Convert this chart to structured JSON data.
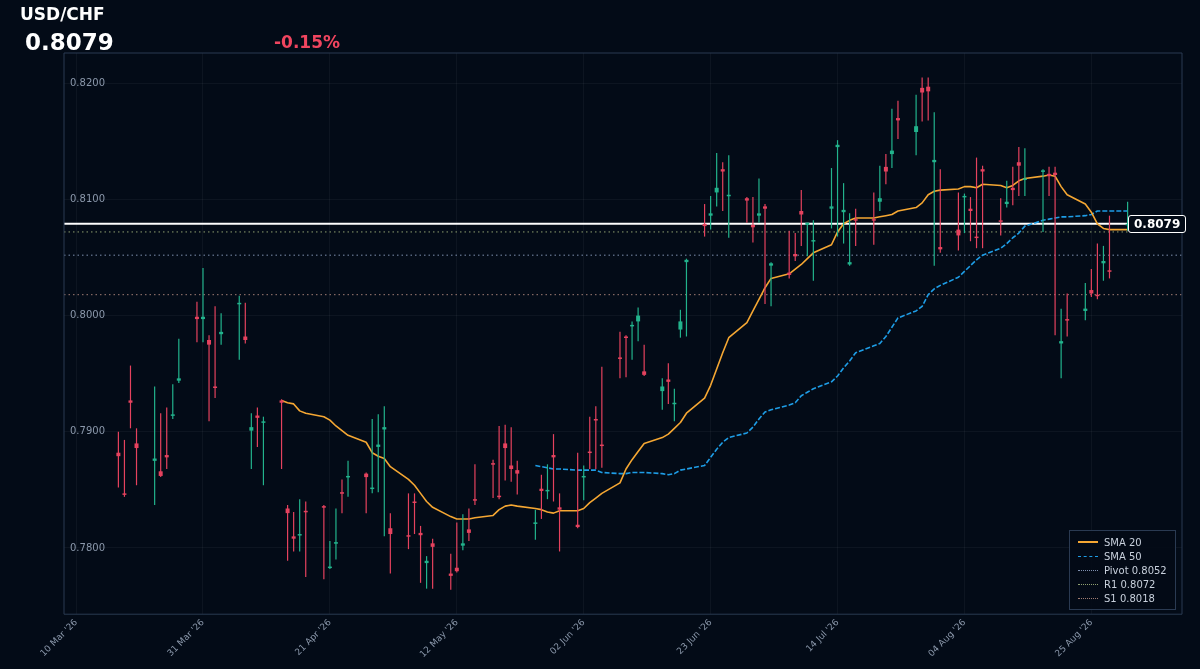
{
  "chart_data": {
    "type": "candlestick",
    "title": "USD/CHF",
    "subtitle": "0.8079",
    "annotations": [
      "-0.15%"
    ],
    "x": [
      "2026-03-17",
      "2026-03-18",
      "2026-03-19",
      "2026-03-20",
      "2026-03-23",
      "2026-03-24",
      "2026-03-25",
      "2026-03-26",
      "2026-03-27",
      "2026-03-30",
      "2026-03-31",
      "2026-04-01",
      "2026-04-02",
      "2026-04-03",
      "2026-04-06",
      "2026-04-07",
      "2026-04-08",
      "2026-04-09",
      "2026-04-10",
      "2026-04-13",
      "2026-04-14",
      "2026-04-15",
      "2026-04-16",
      "2026-04-17",
      "2026-04-20",
      "2026-04-21",
      "2026-04-22",
      "2026-04-23",
      "2026-04-24",
      "2026-04-27",
      "2026-04-28",
      "2026-04-29",
      "2026-04-30",
      "2026-05-01",
      "2026-05-04",
      "2026-05-05",
      "2026-05-06",
      "2026-05-07",
      "2026-05-08",
      "2026-05-11",
      "2026-05-12",
      "2026-05-13",
      "2026-05-14",
      "2026-05-15",
      "2026-05-18",
      "2026-05-19",
      "2026-05-20",
      "2026-05-21",
      "2026-05-22",
      "2026-05-25",
      "2026-05-26",
      "2026-05-27",
      "2026-05-28",
      "2026-05-29",
      "2026-06-01",
      "2026-06-02",
      "2026-06-03",
      "2026-06-04",
      "2026-06-05",
      "2026-06-08",
      "2026-06-09",
      "2026-06-10",
      "2026-06-11",
      "2026-06-12",
      "2026-06-15",
      "2026-06-16",
      "2026-06-17",
      "2026-06-18",
      "2026-06-19",
      "2026-06-22",
      "2026-06-23",
      "2026-06-24",
      "2026-06-25",
      "2026-06-26",
      "2026-06-29",
      "2026-06-30",
      "2026-07-01",
      "2026-07-02",
      "2026-07-03",
      "2026-07-06",
      "2026-07-07",
      "2026-07-08",
      "2026-07-09",
      "2026-07-10",
      "2026-07-13",
      "2026-07-14",
      "2026-07-15",
      "2026-07-16",
      "2026-07-17",
      "2026-07-20",
      "2026-07-21",
      "2026-07-22",
      "2026-07-23",
      "2026-07-24",
      "2026-07-27",
      "2026-07-28",
      "2026-07-29",
      "2026-07-30",
      "2026-07-31",
      "2026-08-03",
      "2026-08-04",
      "2026-08-05",
      "2026-08-06",
      "2026-08-07",
      "2026-08-10",
      "2026-08-11",
      "2026-08-12",
      "2026-08-13",
      "2026-08-14",
      "2026-08-17",
      "2026-08-18",
      "2026-08-19",
      "2026-08-20",
      "2026-08-21",
      "2026-08-24",
      "2026-08-25",
      "2026-08-26",
      "2026-08-27",
      "2026-08-28",
      "2026-08-31"
    ],
    "ohlc": [
      [
        0.7882,
        0.79,
        0.7852,
        0.7879
      ],
      [
        0.7847,
        0.7893,
        0.7844,
        0.7846
      ],
      [
        0.7927,
        0.7957,
        0.7903,
        0.7925
      ],
      [
        0.789,
        0.7903,
        0.7854,
        0.7886
      ],
      [
        0.7875,
        0.7939,
        0.7837,
        0.7877
      ],
      [
        0.7866,
        0.7916,
        0.7861,
        0.7862
      ],
      [
        0.788,
        0.7921,
        0.7868,
        0.7878
      ],
      [
        0.7914,
        0.7941,
        0.7911,
        0.7915
      ],
      [
        0.7944,
        0.798,
        0.7942,
        0.7946
      ],
      [
        0.7999,
        0.8012,
        0.7977,
        0.7997
      ],
      [
        0.7997,
        0.8041,
        0.7977,
        0.7999
      ],
      [
        0.7979,
        0.7983,
        0.7909,
        0.7975
      ],
      [
        0.7939,
        0.8008,
        0.7929,
        0.7938
      ],
      [
        0.7984,
        0.8002,
        0.7975,
        0.7986
      ],
      [
        0.801,
        0.8017,
        0.7962,
        0.8011
      ],
      [
        0.7982,
        0.8011,
        0.7976,
        0.7979
      ],
      [
        0.7901,
        0.7916,
        0.7868,
        0.7904
      ],
      [
        0.7914,
        0.7921,
        0.7887,
        0.7912
      ],
      [
        0.7908,
        0.7913,
        0.7854,
        0.7909
      ],
      [
        0.7927,
        0.7928,
        0.7868,
        0.7925
      ],
      [
        0.7834,
        0.7837,
        0.7789,
        0.783
      ],
      [
        0.781,
        0.7831,
        0.7797,
        0.7808
      ],
      [
        0.7811,
        0.7842,
        0.7797,
        0.7812
      ],
      [
        0.7832,
        0.784,
        0.7775,
        0.7831
      ],
      [
        0.7836,
        0.7837,
        0.7773,
        0.7835
      ],
      [
        0.7783,
        0.7806,
        0.7782,
        0.7784
      ],
      [
        0.7804,
        0.7834,
        0.779,
        0.7805
      ],
      [
        0.7848,
        0.7859,
        0.783,
        0.7847
      ],
      [
        0.7861,
        0.7875,
        0.7844,
        0.7862
      ],
      [
        0.7864,
        0.7865,
        0.783,
        0.7861
      ],
      [
        0.7851,
        0.7911,
        0.7847,
        0.7852
      ],
      [
        0.7887,
        0.7915,
        0.7848,
        0.7889
      ],
      [
        0.7902,
        0.7922,
        0.781,
        0.7904
      ],
      [
        0.7817,
        0.783,
        0.7778,
        0.7812
      ],
      [
        0.7811,
        0.7847,
        0.7799,
        0.781
      ],
      [
        0.784,
        0.7847,
        0.7812,
        0.7839
      ],
      [
        0.7813,
        0.7819,
        0.777,
        0.7811
      ],
      [
        0.7787,
        0.7793,
        0.7765,
        0.7789
      ],
      [
        0.7804,
        0.7808,
        0.7765,
        0.7801
      ],
      [
        0.7778,
        0.7795,
        0.7764,
        0.7776
      ],
      [
        0.7783,
        0.7822,
        0.7779,
        0.778
      ],
      [
        0.7802,
        0.7829,
        0.7798,
        0.7804
      ],
      [
        0.7816,
        0.7834,
        0.7806,
        0.7813
      ],
      [
        0.7842,
        0.7872,
        0.7837,
        0.7841
      ],
      [
        0.7873,
        0.7876,
        0.7843,
        0.7872
      ],
      [
        0.7845,
        0.7905,
        0.7842,
        0.7844
      ],
      [
        0.789,
        0.7906,
        0.7858,
        0.7886
      ],
      [
        0.7871,
        0.7904,
        0.7857,
        0.7868
      ],
      [
        0.7867,
        0.7875,
        0.7846,
        0.7864
      ],
      [
        0.7821,
        0.7833,
        0.7807,
        0.7822
      ],
      [
        0.7851,
        0.7863,
        0.7825,
        0.7849
      ],
      [
        0.7849,
        0.7872,
        0.7842,
        0.785
      ],
      [
        0.788,
        0.7898,
        0.784,
        0.7878
      ],
      [
        0.7835,
        0.7847,
        0.7797,
        0.7833
      ],
      [
        0.782,
        0.7882,
        0.7817,
        0.7818
      ],
      [
        0.7861,
        0.7871,
        0.7841,
        0.7862
      ],
      [
        0.7883,
        0.7913,
        0.7868,
        0.7882
      ],
      [
        0.7911,
        0.7922,
        0.7868,
        0.791
      ],
      [
        0.7889,
        0.7956,
        0.7869,
        0.7888
      ],
      [
        0.7964,
        0.7986,
        0.7946,
        0.7963
      ],
      [
        0.7982,
        0.7983,
        0.7947,
        0.7981
      ],
      [
        0.7991,
        0.7995,
        0.7962,
        0.7992
      ],
      [
        0.7995,
        0.8007,
        0.7978,
        0.8
      ],
      [
        0.7952,
        0.7975,
        0.7948,
        0.7949
      ],
      [
        0.7935,
        0.7946,
        0.7919,
        0.7939
      ],
      [
        0.7945,
        0.7959,
        0.7924,
        0.7943
      ],
      [
        0.7924,
        0.7937,
        0.7909,
        0.7925
      ],
      [
        0.7988,
        0.8005,
        0.7981,
        0.7995
      ],
      [
        0.8046,
        0.8049,
        0.7982,
        0.8048
      ],
      [
        0.8079,
        0.8096,
        0.8068,
        0.8077
      ],
      [
        0.8086,
        0.8103,
        0.8074,
        0.8088
      ],
      [
        0.8106,
        0.814,
        0.8094,
        0.811
      ],
      [
        0.8126,
        0.8132,
        0.809,
        0.8124
      ],
      [
        0.8103,
        0.8138,
        0.8067,
        0.8104
      ],
      [
        0.8101,
        0.8102,
        0.808,
        0.8099
      ],
      [
        0.8078,
        0.8102,
        0.8063,
        0.8076
      ],
      [
        0.8086,
        0.8118,
        0.808,
        0.8088
      ],
      [
        0.8094,
        0.8096,
        0.801,
        0.8092
      ],
      [
        0.8043,
        0.8046,
        0.8008,
        0.8045
      ],
      [
        0.8037,
        0.8073,
        0.8032,
        0.8035
      ],
      [
        0.8053,
        0.8071,
        0.8047,
        0.8051
      ],
      [
        0.809,
        0.8108,
        0.806,
        0.8087
      ],
      [
        0.8078,
        0.808,
        0.8051,
        0.808
      ],
      [
        0.8064,
        0.8082,
        0.803,
        0.8065
      ],
      [
        0.8092,
        0.8127,
        0.8075,
        0.8094
      ],
      [
        0.8145,
        0.8151,
        0.8068,
        0.8147
      ],
      [
        0.8089,
        0.8114,
        0.8062,
        0.8091
      ],
      [
        0.8044,
        0.8088,
        0.8043,
        0.8046
      ],
      [
        0.8083,
        0.8092,
        0.806,
        0.8082
      ],
      [
        0.8083,
        0.8106,
        0.8061,
        0.8082
      ],
      [
        0.8098,
        0.8129,
        0.809,
        0.8101
      ],
      [
        0.8128,
        0.8139,
        0.8113,
        0.8124
      ],
      [
        0.8139,
        0.8178,
        0.8127,
        0.8142
      ],
      [
        0.817,
        0.8185,
        0.8152,
        0.8168
      ],
      [
        0.8158,
        0.819,
        0.8138,
        0.8163
      ],
      [
        0.8196,
        0.8205,
        0.8167,
        0.8192
      ],
      [
        0.8197,
        0.8205,
        0.8168,
        0.8193
      ],
      [
        0.8132,
        0.8175,
        0.8043,
        0.8134
      ],
      [
        0.8059,
        0.8126,
        0.8054,
        0.8057
      ],
      [
        0.8074,
        0.8106,
        0.8056,
        0.8069
      ],
      [
        0.8102,
        0.8105,
        0.8071,
        0.8103
      ],
      [
        0.8092,
        0.8102,
        0.8064,
        0.809
      ],
      [
        0.8068,
        0.8136,
        0.8058,
        0.8067
      ],
      [
        0.8126,
        0.8129,
        0.8058,
        0.8124
      ],
      [
        0.8082,
        0.8101,
        0.8069,
        0.8081
      ],
      [
        0.8096,
        0.8116,
        0.8093,
        0.8098
      ],
      [
        0.811,
        0.8128,
        0.8095,
        0.8108
      ],
      [
        0.8132,
        0.8145,
        0.8103,
        0.8129
      ],
      [
        0.8117,
        0.8144,
        0.8103,
        0.8118
      ],
      [
        0.8124,
        0.8126,
        0.8072,
        0.8125
      ],
      [
        0.8122,
        0.8128,
        0.8103,
        0.812
      ],
      [
        0.8123,
        0.8128,
        0.7983,
        0.8121
      ],
      [
        0.7976,
        0.8006,
        0.7946,
        0.7978
      ],
      [
        0.7997,
        0.8019,
        0.7982,
        0.7996
      ],
      [
        0.8004,
        0.8028,
        0.7996,
        0.8006
      ],
      [
        0.8022,
        0.804,
        0.8016,
        0.8019
      ],
      [
        0.8018,
        0.8062,
        0.8014,
        0.8017
      ],
      [
        0.8045,
        0.806,
        0.803,
        0.8047
      ],
      [
        0.8039,
        0.8086,
        0.8032,
        0.8038
      ],
      [
        0.8078,
        0.8098,
        0.8073,
        0.8079
      ]
    ],
    "colors": [
      "#e5425e",
      "#e5425e",
      "#e5425e",
      "#e5425e",
      "#22b38c",
      "#e5425e",
      "#e5425e",
      "#22b38c",
      "#22b38c",
      "#e5425e",
      "#22b38c",
      "#e5425e",
      "#e5425e",
      "#22b38c",
      "#22b38c",
      "#e5425e",
      "#22b38c",
      "#e5425e",
      "#22b38c",
      "#e5425e",
      "#e5425e",
      "#e5425e",
      "#22b38c",
      "#e5425e",
      "#e5425e",
      "#22b38c",
      "#22b38c",
      "#e5425e",
      "#22b38c",
      "#e5425e",
      "#22b38c",
      "#22b38c",
      "#22b38c",
      "#e5425e",
      "#e5425e",
      "#e5425e",
      "#e5425e",
      "#22b38c",
      "#e5425e",
      "#e5425e",
      "#e5425e",
      "#22b38c",
      "#e5425e",
      "#e5425e",
      "#e5425e",
      "#e5425e",
      "#e5425e",
      "#e5425e",
      "#e5425e",
      "#22b38c",
      "#e5425e",
      "#22b38c",
      "#e5425e",
      "#e5425e",
      "#e5425e",
      "#22b38c",
      "#e5425e",
      "#e5425e",
      "#e5425e",
      "#e5425e",
      "#e5425e",
      "#22b38c",
      "#22b38c",
      "#e5425e",
      "#22b38c",
      "#e5425e",
      "#22b38c",
      "#22b38c",
      "#22b38c",
      "#e5425e",
      "#22b38c",
      "#22b38c",
      "#e5425e",
      "#22b38c",
      "#e5425e",
      "#e5425e",
      "#22b38c",
      "#e5425e",
      "#22b38c",
      "#e5425e",
      "#e5425e",
      "#e5425e",
      "#22b38c",
      "#22b38c",
      "#22b38c",
      "#22b38c",
      "#22b38c",
      "#22b38c",
      "#e5425e",
      "#e5425e",
      "#22b38c",
      "#e5425e",
      "#22b38c",
      "#e5425e",
      "#22b38c",
      "#e5425e",
      "#e5425e",
      "#22b38c",
      "#e5425e",
      "#e5425e",
      "#22b38c",
      "#e5425e",
      "#e5425e",
      "#e5425e",
      "#e5425e",
      "#22b38c",
      "#e5425e",
      "#e5425e",
      "#22b38c",
      "#22b38c",
      "#e5425e",
      "#e5425e",
      "#22b38c",
      "#e5425e",
      "#22b38c",
      "#e5425e",
      "#e5425e",
      "#22b38c",
      "#e5425e",
      "#22b38c"
    ],
    "series": [
      {
        "name": "SMA 20",
        "type": "line",
        "color": "#f5a733",
        "line_style": "solid",
        "x": [
          "2026-04-13",
          "2026-04-14",
          "2026-04-15",
          "2026-04-16",
          "2026-04-17",
          "2026-04-20",
          "2026-04-21",
          "2026-04-22",
          "2026-04-23",
          "2026-04-24",
          "2026-04-27",
          "2026-04-28",
          "2026-04-29",
          "2026-04-30",
          "2026-05-01",
          "2026-05-04",
          "2026-05-05",
          "2026-05-06",
          "2026-05-07",
          "2026-05-08",
          "2026-05-11",
          "2026-05-12",
          "2026-05-13",
          "2026-05-14",
          "2026-05-15",
          "2026-05-18",
          "2026-05-19",
          "2026-05-20",
          "2026-05-21",
          "2026-05-22",
          "2026-05-25",
          "2026-05-26",
          "2026-05-27",
          "2026-05-28",
          "2026-05-29",
          "2026-06-01",
          "2026-06-02",
          "2026-06-03",
          "2026-06-04",
          "2026-06-05",
          "2026-06-08",
          "2026-06-09",
          "2026-06-10",
          "2026-06-11",
          "2026-06-12",
          "2026-06-15",
          "2026-06-16",
          "2026-06-17",
          "2026-06-18",
          "2026-06-19",
          "2026-06-22",
          "2026-06-23",
          "2026-06-24",
          "2026-06-25",
          "2026-06-26",
          "2026-06-29",
          "2026-06-30",
          "2026-07-01",
          "2026-07-02",
          "2026-07-03",
          "2026-07-06",
          "2026-07-07",
          "2026-07-08",
          "2026-07-09",
          "2026-07-10",
          "2026-07-13",
          "2026-07-14",
          "2026-07-15",
          "2026-07-16",
          "2026-07-17",
          "2026-07-20",
          "2026-07-21",
          "2026-07-22",
          "2026-07-23",
          "2026-07-24",
          "2026-07-27",
          "2026-07-28",
          "2026-07-29",
          "2026-07-30",
          "2026-07-31",
          "2026-08-03",
          "2026-08-04",
          "2026-08-05",
          "2026-08-06",
          "2026-08-07",
          "2026-08-10",
          "2026-08-11",
          "2026-08-12",
          "2026-08-13",
          "2026-08-14",
          "2026-08-17",
          "2026-08-18",
          "2026-08-19",
          "2026-08-20",
          "2026-08-21",
          "2026-08-24",
          "2026-08-25",
          "2026-08-26",
          "2026-08-27",
          "2026-08-28",
          "2026-08-31"
        ],
        "values": [
          0.7927,
          0.7925,
          0.7924,
          0.7918,
          0.7916,
          0.7913,
          0.791,
          0.7905,
          0.7901,
          0.7897,
          0.7891,
          0.7882,
          0.7879,
          0.7877,
          0.787,
          0.7859,
          0.7854,
          0.7847,
          0.784,
          0.7835,
          0.7827,
          0.7825,
          0.7825,
          0.7825,
          0.7826,
          0.7828,
          0.7833,
          0.7836,
          0.7837,
          0.7836,
          0.7834,
          0.7833,
          0.7831,
          0.783,
          0.7832,
          0.7832,
          0.7834,
          0.7839,
          0.7843,
          0.7847,
          0.7856,
          0.7868,
          0.7876,
          0.7883,
          0.789,
          0.7895,
          0.7898,
          0.7903,
          0.7908,
          0.7916,
          0.7929,
          0.794,
          0.7954,
          0.7968,
          0.7981,
          0.7994,
          0.8004,
          0.8014,
          0.8024,
          0.8032,
          0.8036,
          0.804,
          0.8044,
          0.8049,
          0.8054,
          0.8061,
          0.8072,
          0.8079,
          0.8082,
          0.8084,
          0.8084,
          0.8085,
          0.8086,
          0.8087,
          0.809,
          0.8093,
          0.8097,
          0.8104,
          0.8107,
          0.8108,
          0.8109,
          0.8111,
          0.8111,
          0.811,
          0.8113,
          0.8112,
          0.811,
          0.8112,
          0.8116,
          0.8118,
          0.812,
          0.8121,
          0.812,
          0.8111,
          0.8104,
          0.8096,
          0.8089,
          0.8079,
          0.8075,
          0.8074,
          0.8074
        ]
      },
      {
        "name": "SMA 50",
        "type": "line",
        "color": "#1e9de6",
        "line_style": "dashed",
        "x": [
          "2026-05-25",
          "2026-05-26",
          "2026-05-27",
          "2026-05-28",
          "2026-05-29",
          "2026-06-01",
          "2026-06-02",
          "2026-06-03",
          "2026-06-04",
          "2026-06-05",
          "2026-06-08",
          "2026-06-09",
          "2026-06-10",
          "2026-06-11",
          "2026-06-12",
          "2026-06-15",
          "2026-06-16",
          "2026-06-17",
          "2026-06-18",
          "2026-06-19",
          "2026-06-22",
          "2026-06-23",
          "2026-06-24",
          "2026-06-25",
          "2026-06-26",
          "2026-06-29",
          "2026-06-30",
          "2026-07-01",
          "2026-07-02",
          "2026-07-03",
          "2026-07-06",
          "2026-07-07",
          "2026-07-08",
          "2026-07-09",
          "2026-07-10",
          "2026-07-13",
          "2026-07-14",
          "2026-07-15",
          "2026-07-16",
          "2026-07-17",
          "2026-07-20",
          "2026-07-21",
          "2026-07-22",
          "2026-07-23",
          "2026-07-24",
          "2026-07-27",
          "2026-07-28",
          "2026-07-29",
          "2026-07-30",
          "2026-07-31",
          "2026-08-03",
          "2026-08-04",
          "2026-08-05",
          "2026-08-06",
          "2026-08-07",
          "2026-08-10",
          "2026-08-11",
          "2026-08-12",
          "2026-08-13",
          "2026-08-14",
          "2026-08-17",
          "2026-08-18",
          "2026-08-19",
          "2026-08-20",
          "2026-08-21",
          "2026-08-24",
          "2026-08-25",
          "2026-08-26",
          "2026-08-27",
          "2026-08-28",
          "2026-08-31"
        ],
        "values": [
          0.7871,
          0.787,
          0.7869,
          0.7868,
          0.7868,
          0.7867,
          0.7867,
          0.7867,
          0.7867,
          0.7865,
          0.7864,
          0.7864,
          0.7865,
          0.7865,
          0.7865,
          0.7864,
          0.7863,
          0.7864,
          0.7867,
          0.7868,
          0.7871,
          0.7878,
          0.7885,
          0.7891,
          0.7895,
          0.7899,
          0.7904,
          0.7911,
          0.7917,
          0.7919,
          0.7923,
          0.7925,
          0.7931,
          0.7934,
          0.7937,
          0.7943,
          0.7948,
          0.7955,
          0.7961,
          0.7968,
          0.7974,
          0.7976,
          0.7982,
          0.799,
          0.7998,
          0.8004,
          0.8008,
          0.8018,
          0.8023,
          0.8026,
          0.8033,
          0.8038,
          0.8043,
          0.8048,
          0.8052,
          0.8058,
          0.8062,
          0.8067,
          0.8071,
          0.8077,
          0.8082,
          0.8083,
          0.8084,
          0.8085,
          0.8085,
          0.8086,
          0.8087,
          0.809,
          0.809,
          0.809,
          0.809
        ]
      }
    ],
    "ref_lines": [
      {
        "axis": "y",
        "value": 0.8079,
        "label": "0.8079",
        "color": "#ffffff",
        "line_style": "solid"
      },
      {
        "axis": "y",
        "value": 0.8052,
        "label": "Pivot 0.8052",
        "color": "#7f90b0",
        "line_style": "dotted"
      },
      {
        "axis": "y",
        "value": 0.8072,
        "label": "R1 0.8072",
        "color": "#8fa070",
        "line_style": "dotted"
      },
      {
        "axis": "y",
        "value": 0.8018,
        "label": "S1 0.8018",
        "color": "#a07c72",
        "line_style": "dotted"
      }
    ],
    "xlim": [
      "2026-03-08",
      "2026-09-09"
    ],
    "xticks": [
      {
        "value": "2026-03-10",
        "label": "10 Mar '26"
      },
      {
        "value": "2026-03-31",
        "label": "31 Mar '26"
      },
      {
        "value": "2026-04-21",
        "label": "21 Apr '26"
      },
      {
        "value": "2026-05-12",
        "label": "12 May '26"
      },
      {
        "value": "2026-06-02",
        "label": "02 Jun '26"
      },
      {
        "value": "2026-06-23",
        "label": "23 Jun '26"
      },
      {
        "value": "2026-07-14",
        "label": "14 Jul '26"
      },
      {
        "value": "2026-08-04",
        "label": "04 Aug '26"
      },
      {
        "value": "2026-08-25",
        "label": "25 Aug '26"
      }
    ],
    "ylim": [
      0.7743,
      0.8226
    ],
    "yticks": [
      {
        "value": 0.78,
        "label": "0.7800"
      },
      {
        "value": 0.79,
        "label": "0.7900"
      },
      {
        "value": 0.8,
        "label": "0.8000"
      },
      {
        "value": 0.81,
        "label": "0.8100"
      },
      {
        "value": 0.82,
        "label": "0.8200"
      }
    ],
    "grid": true,
    "legend": "bottom right",
    "marker": "none"
  }
}
